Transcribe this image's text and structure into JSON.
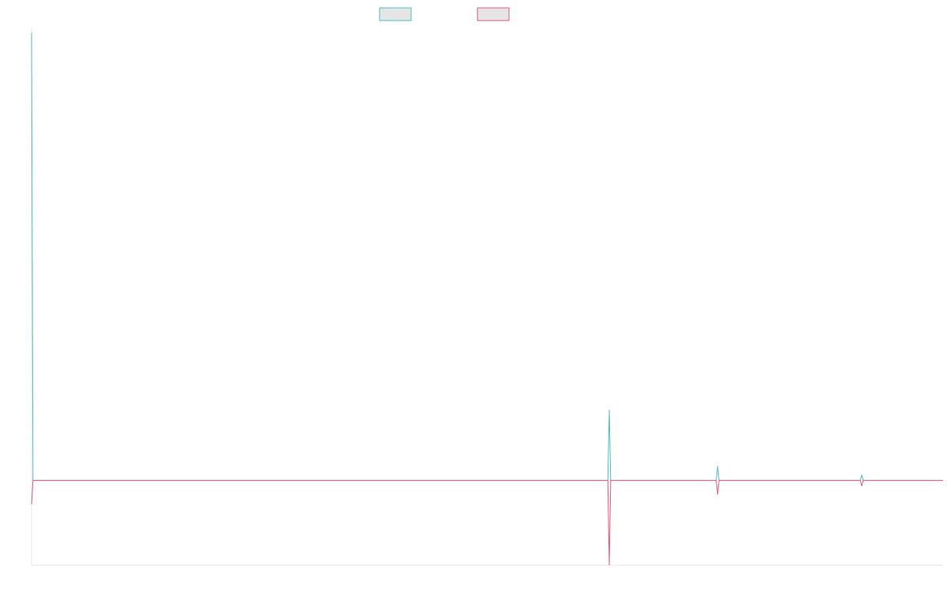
{
  "chart_data": {
    "type": "line",
    "title": "",
    "xlabel": "",
    "ylabel": "",
    "grid": false,
    "legend_position": "top-center",
    "x_count": 640,
    "ylim": [
      -6,
      32
    ],
    "series": [
      {
        "name": "",
        "color": "#4BC0C0",
        "fill": "#E5E5E5",
        "spikes": [
          {
            "x": 0,
            "y": 31.7
          },
          {
            "x": 405,
            "y": 5.0
          },
          {
            "x": 481,
            "y": 1.0
          },
          {
            "x": 582,
            "y": 0.4
          }
        ],
        "baseline": 0
      },
      {
        "name": "",
        "color": "#F0557A",
        "fill": "#E5E5E5",
        "spikes": [
          {
            "x": 0,
            "y": -1.7
          },
          {
            "x": 405,
            "y": -6.0
          },
          {
            "x": 481,
            "y": -1.0
          },
          {
            "x": 582,
            "y": -0.4
          }
        ],
        "baseline": 0
      }
    ]
  }
}
